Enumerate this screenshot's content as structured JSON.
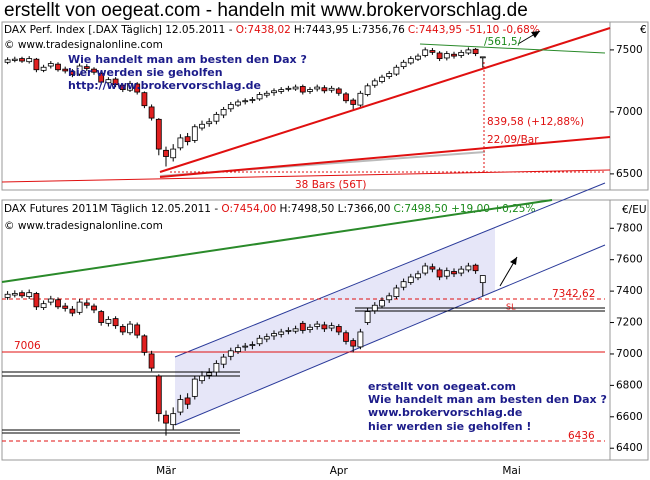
{
  "title": "erstellt von oegeat.com - handeln mit www.brokervorschlag.de",
  "chart_data": [
    {
      "type": "candlestick",
      "header": [
        "DAX Perf. Index [.DAX Täglich] 12.05.2011 -",
        "O:7438,02",
        "H:7443,95 L:7356,76",
        "C:7443,95 -51,10 -0,68%"
      ],
      "source": "© www.tradesignalonline.com",
      "y_label": "€",
      "ylim": [
        6370,
        7725
      ],
      "yticks": [
        6500,
        7000,
        7500
      ],
      "up_color": "#ffffff",
      "down_color": "#e02020",
      "open": [
        7400,
        7415,
        7430,
        7405,
        7425,
        7335,
        7370,
        7385,
        7345,
        7325,
        7305,
        7365,
        7345,
        7310,
        7235,
        7265,
        7215,
        7175,
        7225,
        7155,
        7040,
        6940,
        6690,
        6630,
        6710,
        6800,
        6770,
        6870,
        6905,
        6925,
        6975,
        7025,
        7055,
        7085,
        7095,
        7105,
        7135,
        7155,
        7165,
        7185,
        7185,
        7205,
        7165,
        7185,
        7195,
        7175,
        7185,
        7145,
        7095,
        7055,
        7140,
        7215,
        7245,
        7285,
        7305,
        7365,
        7395,
        7425,
        7455,
        7495,
        7475,
        7435,
        7465,
        7455,
        7475,
        7505,
        7438
      ],
      "high": [
        7440,
        7445,
        7445,
        7450,
        7435,
        7380,
        7410,
        7400,
        7365,
        7345,
        7390,
        7385,
        7360,
        7320,
        7280,
        7280,
        7230,
        7250,
        7240,
        7165,
        7060,
        6950,
        6720,
        6740,
        6820,
        6830,
        6900,
        6930,
        6950,
        7000,
        7040,
        7080,
        7100,
        7110,
        7120,
        7160,
        7170,
        7190,
        7200,
        7210,
        7220,
        7220,
        7200,
        7220,
        7215,
        7210,
        7200,
        7160,
        7110,
        7170,
        7230,
        7270,
        7300,
        7330,
        7380,
        7420,
        7450,
        7470,
        7520,
        7515,
        7490,
        7490,
        7485,
        7500,
        7520,
        7515,
        7444
      ],
      "low": [
        7385,
        7400,
        7395,
        7390,
        7320,
        7320,
        7350,
        7325,
        7310,
        7280,
        7290,
        7330,
        7300,
        7220,
        7215,
        7200,
        7160,
        7160,
        7140,
        7030,
        6930,
        6650,
        6560,
        6600,
        6690,
        6730,
        6750,
        6850,
        6880,
        6900,
        6950,
        7000,
        7040,
        7060,
        7070,
        7090,
        7115,
        7130,
        7145,
        7165,
        7170,
        7140,
        7145,
        7165,
        7150,
        7155,
        7130,
        7070,
        7020,
        7040,
        7125,
        7195,
        7230,
        7265,
        7290,
        7345,
        7380,
        7410,
        7440,
        7460,
        7410,
        7415,
        7430,
        7435,
        7460,
        7450,
        7357
      ],
      "close": [
        7420,
        7425,
        7410,
        7430,
        7340,
        7360,
        7390,
        7340,
        7330,
        7300,
        7370,
        7350,
        7320,
        7240,
        7260,
        7220,
        7180,
        7230,
        7160,
        7050,
        6950,
        6700,
        6640,
        6700,
        6790,
        6760,
        6880,
        6900,
        6920,
        6980,
        7020,
        7060,
        7080,
        7090,
        7100,
        7140,
        7150,
        7170,
        7180,
        7190,
        7200,
        7160,
        7180,
        7200,
        7170,
        7190,
        7150,
        7090,
        7060,
        7150,
        7210,
        7250,
        7280,
        7310,
        7360,
        7400,
        7430,
        7450,
        7500,
        7480,
        7430,
        7470,
        7450,
        7480,
        7500,
        7470,
        7444
      ],
      "annotations": {
        "ad": [
          "Wie handelt man am besten  den Dax ?",
          "hier werden sie geholfen",
          "http://www.brokervorschlag.de"
        ],
        "change": "839,58 (+12,88%)",
        "per_bar": "22,09/Bar",
        "bars": "38 Bars (56T)",
        "level": "/561,5/"
      }
    },
    {
      "type": "candlestick",
      "header": [
        "DAX Futures 2011M Täglich  12.05.2011 -",
        "O:7454,00",
        "H:7498,50 L:7366,00",
        "C:7498,50 +19,00 +0,25%"
      ],
      "source": "© www.tradesignalonline.com",
      "y_label": "€/EU",
      "ylim": [
        6325,
        7980
      ],
      "yticks": [
        6400,
        6600,
        6800,
        7000,
        7200,
        7400,
        7600,
        7800
      ],
      "up_color": "#ffffff",
      "down_color": "#e02020",
      "categories": [
        null,
        null,
        null,
        null,
        null,
        null,
        null,
        null,
        null,
        null,
        null,
        null,
        null,
        null,
        null,
        null,
        null,
        null,
        null,
        null,
        null,
        null,
        "Mär",
        null,
        null,
        null,
        null,
        null,
        null,
        null,
        null,
        null,
        null,
        null,
        null,
        null,
        null,
        null,
        null,
        null,
        null,
        null,
        null,
        null,
        null,
        null,
        "Apr",
        null,
        null,
        null,
        null,
        null,
        null,
        null,
        null,
        null,
        null,
        null,
        null,
        null,
        null,
        null,
        null,
        null,
        null,
        null,
        null,
        null,
        null,
        null,
        "Mai"
      ],
      "open": [
        7360,
        7375,
        7390,
        7365,
        7385,
        7295,
        7330,
        7345,
        7305,
        7285,
        7265,
        7325,
        7305,
        7270,
        7195,
        7225,
        7175,
        7135,
        7185,
        7115,
        7000,
        6860,
        6610,
        6550,
        6630,
        6720,
        6730,
        6830,
        6865,
        6885,
        6935,
        6985,
        7015,
        7045,
        7055,
        7065,
        7095,
        7115,
        7125,
        7145,
        7145,
        7195,
        7155,
        7175,
        7185,
        7165,
        7175,
        7135,
        7085,
        7045,
        7200,
        7275,
        7305,
        7345,
        7365,
        7425,
        7455,
        7485,
        7515,
        7555,
        7535,
        7495,
        7525,
        7515,
        7535,
        7565,
        7454,
        null,
        null,
        null,
        null
      ],
      "high": [
        7400,
        7405,
        7405,
        7410,
        7395,
        7340,
        7370,
        7360,
        7325,
        7305,
        7350,
        7345,
        7320,
        7280,
        7240,
        7240,
        7190,
        7210,
        7200,
        7125,
        7020,
        6870,
        6640,
        6660,
        6740,
        6750,
        6860,
        6890,
        6910,
        6960,
        7000,
        7040,
        7060,
        7070,
        7080,
        7120,
        7130,
        7150,
        7160,
        7170,
        7180,
        7210,
        7190,
        7210,
        7205,
        7200,
        7190,
        7150,
        7100,
        7160,
        7290,
        7330,
        7360,
        7390,
        7440,
        7480,
        7510,
        7530,
        7580,
        7575,
        7550,
        7550,
        7545,
        7560,
        7580,
        7575,
        7499,
        null,
        null,
        null,
        null
      ],
      "low": [
        7345,
        7360,
        7355,
        7350,
        7280,
        7280,
        7310,
        7285,
        7270,
        7240,
        7250,
        7290,
        7260,
        7180,
        7175,
        7160,
        7120,
        7120,
        7100,
        6990,
        6890,
        6570,
        6480,
        6520,
        6610,
        6650,
        6710,
        6810,
        6840,
        6860,
        6910,
        6960,
        7000,
        7020,
        7030,
        7050,
        7075,
        7090,
        7105,
        7125,
        7130,
        7130,
        7135,
        7155,
        7140,
        7145,
        7120,
        7060,
        7010,
        7030,
        7185,
        7255,
        7290,
        7325,
        7350,
        7405,
        7440,
        7470,
        7500,
        7520,
        7470,
        7475,
        7490,
        7495,
        7520,
        7510,
        7366,
        null,
        null,
        null,
        null
      ],
      "close": [
        7380,
        7385,
        7370,
        7390,
        7300,
        7320,
        7350,
        7300,
        7290,
        7260,
        7330,
        7310,
        7280,
        7200,
        7220,
        7180,
        7140,
        7190,
        7120,
        7010,
        6910,
        6620,
        6560,
        6620,
        6710,
        6680,
        6840,
        6860,
        6880,
        6940,
        6980,
        7020,
        7040,
        7050,
        7060,
        7100,
        7110,
        7130,
        7140,
        7150,
        7160,
        7150,
        7170,
        7190,
        7160,
        7180,
        7140,
        7080,
        7050,
        7140,
        7270,
        7310,
        7340,
        7370,
        7420,
        7460,
        7490,
        7510,
        7560,
        7540,
        7490,
        7530,
        7510,
        7540,
        7560,
        7530,
        7499,
        null,
        null,
        null,
        null
      ],
      "annotations": {
        "ad": [
          "erstellt von oegeat.com",
          "Wie handelt man am besten den Dax ?",
          "www.brokervorschlag.de",
          "hier werden sie geholfen !"
        ],
        "level_high": "7342,62",
        "level_low": "6436",
        "level_mid": "7006",
        "stop": "SL"
      }
    }
  ]
}
